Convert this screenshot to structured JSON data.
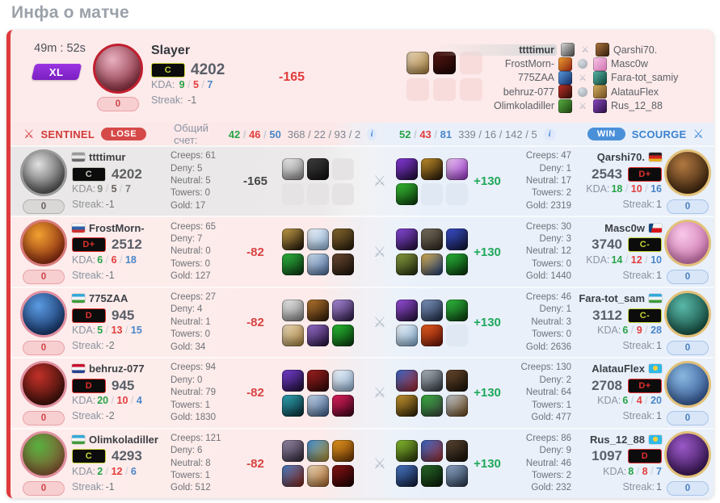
{
  "page": {
    "title": "Инфа о матче"
  },
  "labels": {
    "kda": "KDA:",
    "streak": "Streak:",
    "creeps": "Creeps:",
    "deny": "Deny:",
    "neutral": "Neutral:",
    "towers": "Towers:",
    "gold": "Gold:",
    "score": "Общий счет:"
  },
  "header": {
    "duration": "49m : 52s",
    "mode": "XL",
    "featured": {
      "name": "Slayer",
      "tier": {
        "label": "C",
        "color": "#c6d435"
      },
      "rating": "4202",
      "k": "9",
      "d": "5",
      "a": "7",
      "streak": "-1",
      "delta": "-165",
      "delta_color": "#e03c3c",
      "pill": "0",
      "avatar": {
        "ring": "#c01f2f",
        "colors": [
          "#e8b0c0",
          "#7a1c2c"
        ]
      }
    },
    "items": [
      [
        "#ead9bc",
        "#a97f3c"
      ],
      [
        "#541713",
        "#1c0605"
      ],
      null,
      null,
      null,
      null
    ],
    "matchups": [
      {
        "left": "ttttimur",
        "right": "Qarshi70.",
        "vs": "swords",
        "left_hl": true,
        "left_hero": [
          "#dcdcdc",
          "#3a3a3a"
        ],
        "right_hero": [
          "#b07840",
          "#2e1a08"
        ]
      },
      {
        "left": "FrostMorn-",
        "right": "Masc0w",
        "vs": "orb",
        "left_hero": [
          "#f0a030",
          "#8a1e10"
        ],
        "right_hero": [
          "#f8c8e8",
          "#d070b0"
        ]
      },
      {
        "left": "775ZAA",
        "right": "Fara-tot_samiy",
        "vs": "swords",
        "left_hero": [
          "#5a9ae0",
          "#102a60"
        ],
        "right_hero": [
          "#58b8a8",
          "#0e4034"
        ]
      },
      {
        "left": "behruz-077",
        "right": "AlatauFlex",
        "vs": "orb",
        "left_hero": [
          "#c03028",
          "#2a0c06"
        ],
        "right_hero": [
          "#d8b060",
          "#6a4820"
        ]
      },
      {
        "left": "Olimkoladiller",
        "right": "Rus_12_88",
        "vs": "swords",
        "left_hero": [
          "#58b040",
          "#1e4010"
        ],
        "right_hero": [
          "#8a48c0",
          "#2a0e40"
        ]
      }
    ]
  },
  "teams": {
    "left": {
      "name": "SENTINEL",
      "result": "LOSE",
      "k": "42",
      "d": "46",
      "a": "50",
      "extra": "368 / 22 / 93 / 2"
    },
    "right": {
      "name": "SCOURGE",
      "result": "WIN",
      "k": "52",
      "d": "43",
      "a": "81",
      "extra": "339 / 16 / 142 / 5"
    }
  },
  "rows": [
    {
      "theme": "gray",
      "left": {
        "name": "ttttimur",
        "flag": "mono",
        "tier": {
          "label": "C",
          "color": "#c6d435"
        },
        "rating": "4202",
        "k": "9",
        "d": "5",
        "a": "7",
        "streak": "-1",
        "pill": "0",
        "creeps": "61",
        "deny": "5",
        "neutral": "5",
        "towers": "0",
        "gold": "17",
        "delta": "-165",
        "delta_color": "#42464c",
        "avatar": {
          "ring": "#9a9a9a",
          "colors": [
            "#e0e0e0",
            "#3a3a3a"
          ]
        },
        "items": [
          [
            "#f0f0f0",
            "#8a8a8a"
          ],
          [
            "#404040",
            "#0e0e0e"
          ],
          null,
          null,
          null,
          null
        ]
      },
      "right": {
        "name": "Qarshi70.",
        "flag": "de",
        "tier": {
          "label": "D+",
          "color": "#e23030"
        },
        "rating": "2543",
        "k": "18",
        "d": "10",
        "a": "16",
        "streak": "1",
        "pill": "0",
        "creeps": "47",
        "deny": "1",
        "neutral": "17",
        "towers": "2",
        "gold": "2319",
        "delta": "+130",
        "delta_color": "#1fa85a",
        "avatar": {
          "ring": "#e2c078",
          "colors": [
            "#b07840",
            "#2e1a08"
          ]
        },
        "items": [
          [
            "#8a3be0",
            "#1c0d34"
          ],
          [
            "#c8922a",
            "#201408"
          ],
          [
            "#eac8f0",
            "#9a34cc"
          ],
          [
            "#38c034",
            "#0c3a0c"
          ],
          null,
          null
        ]
      }
    },
    {
      "theme": "pink",
      "left": {
        "name": "FrostMorn-",
        "flag": "ru",
        "tier": {
          "label": "D+",
          "color": "#e23030"
        },
        "rating": "2512",
        "k": "6",
        "d": "6",
        "a": "18",
        "streak": "-1",
        "pill": "0",
        "creeps": "65",
        "deny": "7",
        "neutral": "0",
        "towers": "0",
        "gold": "127",
        "delta": "-82",
        "delta_color": "#d94343",
        "avatar": {
          "ring": "#d87a7a",
          "colors": [
            "#f0a030",
            "#7a1a0c"
          ]
        },
        "items": [
          [
            "#caa24a",
            "#181006"
          ],
          [
            "#eef2f8",
            "#8fb4d8"
          ],
          [
            "#8a6a30",
            "#241a0c"
          ],
          [
            "#30b840",
            "#0a3410"
          ],
          [
            "#cfe0f0",
            "#4a6a9a"
          ],
          [
            "#6a4a32",
            "#1c120a"
          ]
        ]
      },
      "right": {
        "name": "Masc0w",
        "flag": "cz",
        "tier": {
          "label": "C-",
          "color": "#c6d435"
        },
        "rating": "3740",
        "k": "14",
        "d": "12",
        "a": "10",
        "streak": "1",
        "pill": "0",
        "creeps": "30",
        "deny": "3",
        "neutral": "12",
        "towers": "0",
        "gold": "1440",
        "delta": "+130",
        "delta_color": "#1fa85a",
        "avatar": {
          "ring": "#e2c078",
          "colors": [
            "#f8c8e8",
            "#c86aa8"
          ]
        },
        "items": [
          [
            "#8a4ae0",
            "#221034"
          ],
          [
            "#7a7060",
            "#2a241c"
          ],
          [
            "#3a50d0",
            "#10142e"
          ],
          [
            "#8aa040",
            "#222a10"
          ],
          [
            "#d8b050",
            "#1e3c78"
          ],
          [
            "#28b838",
            "#0a300e"
          ]
        ]
      }
    },
    {
      "theme": "pink",
      "left": {
        "name": "775ZAA",
        "flag": "uz",
        "tier": {
          "label": "D",
          "color": "#e23030"
        },
        "rating": "945",
        "k": "5",
        "d": "13",
        "a": "15",
        "streak": "-2",
        "pill": "0",
        "creeps": "27",
        "deny": "4",
        "neutral": "1",
        "towers": "0",
        "gold": "34",
        "delta": "-82",
        "delta_color": "#d94343",
        "avatar": {
          "ring": "#e090a0",
          "colors": [
            "#5a9ae0",
            "#0e2858"
          ]
        },
        "items": [
          [
            "#ececec",
            "#848484"
          ],
          [
            "#b87830",
            "#2c1a08"
          ],
          [
            "#b090e0",
            "#281640"
          ],
          [
            "#ead9bc",
            "#a8823c"
          ],
          [
            "#9a70d0",
            "#221036"
          ],
          [
            "#28c034",
            "#0a380c"
          ]
        ]
      },
      "right": {
        "name": "Fara-tot_sam",
        "flag": "uz",
        "tier": {
          "label": "C-",
          "color": "#c6d435"
        },
        "rating": "3112",
        "k": "6",
        "d": "9",
        "a": "28",
        "streak": "1",
        "pill": "0",
        "creeps": "46",
        "deny": "1",
        "neutral": "3",
        "towers": "0",
        "gold": "2636",
        "delta": "+130",
        "delta_color": "#1fa85a",
        "avatar": {
          "ring": "#e2c078",
          "colors": [
            "#58b8a8",
            "#0e4034"
          ]
        },
        "items": [
          [
            "#9a50e0",
            "#221034"
          ],
          [
            "#8098c0",
            "#1e2a44"
          ],
          [
            "#30c040",
            "#0c380e"
          ],
          [
            "#f0f4f8",
            "#80aad0"
          ],
          [
            "#e86020",
            "#6a1206"
          ],
          null
        ]
      }
    },
    {
      "theme": "pink",
      "left": {
        "name": "behruz-077",
        "flag": "nl",
        "tier": {
          "label": "D",
          "color": "#e23030"
        },
        "rating": "945",
        "k": "20",
        "d": "10",
        "a": "4",
        "streak": "-2",
        "pill": "0",
        "creeps": "94",
        "deny": "0",
        "neutral": "79",
        "towers": "1",
        "gold": "1830",
        "delta": "-82",
        "delta_color": "#d94343",
        "avatar": {
          "ring": "#e090a0",
          "colors": [
            "#c03028",
            "#2a0c06"
          ]
        },
        "items": [
          [
            "#7a40d8",
            "#1a0d2e"
          ],
          [
            "#a02020",
            "#2e0808"
          ],
          [
            "#f0f4fa",
            "#90b0d0"
          ],
          [
            "#30a8b8",
            "#0a2c34"
          ],
          [
            "#c8d8ea",
            "#3c5c88"
          ],
          [
            "#e82060",
            "#3c0418"
          ]
        ]
      },
      "right": {
        "name": "AlatauFlex",
        "flag": "kz",
        "tier": {
          "label": "D+",
          "color": "#e23030"
        },
        "rating": "2708",
        "k": "6",
        "d": "4",
        "a": "20",
        "streak": "1",
        "pill": "0",
        "creeps": "130",
        "deny": "2",
        "neutral": "64",
        "towers": "1",
        "gold": "477",
        "delta": "+130",
        "delta_color": "#1fa85a",
        "avatar": {
          "ring": "#e2c078",
          "colors": [
            "#88b8e0",
            "#2a4a88"
          ]
        },
        "items": [
          [
            "#3868c8",
            "#a82828"
          ],
          [
            "#b0b8c0",
            "#2e363e"
          ],
          [
            "#6a4a30",
            "#181006"
          ],
          [
            "#c89830",
            "#2c2008"
          ],
          [
            "#38b040",
            "#3c4440"
          ],
          [
            "#c0c8d0",
            "#6a4416"
          ]
        ]
      }
    },
    {
      "theme": "pink",
      "left": {
        "name": "Olimkoladiller",
        "flag": "uz",
        "tier": {
          "label": "C",
          "color": "#c6d435"
        },
        "rating": "4293",
        "k": "2",
        "d": "12",
        "a": "6",
        "streak": "-1",
        "pill": "0",
        "creeps": "121",
        "deny": "6",
        "neutral": "8",
        "towers": "1",
        "gold": "512",
        "delta": "-82",
        "delta_color": "#d94343",
        "avatar": {
          "ring": "#e090a0",
          "colors": [
            "#58b040",
            "#8a4830"
          ]
        },
        "items": [
          [
            "#9a8aa8",
            "#2c2636"
          ],
          [
            "#4090d8",
            "#b8922c"
          ],
          [
            "#e89a20",
            "#6a3406"
          ],
          [
            "#4a80c8",
            "#882414"
          ],
          [
            "#ead9bc",
            "#a86424"
          ],
          [
            "#8a1414",
            "#1c0202"
          ]
        ]
      },
      "right": {
        "name": "Rus_12_88",
        "flag": "kz",
        "tier": {
          "label": "D",
          "color": "#e23030"
        },
        "rating": "1097",
        "k": "8",
        "d": "8",
        "a": "7",
        "streak": "1",
        "pill": "0",
        "creeps": "86",
        "deny": "9",
        "neutral": "46",
        "towers": "2",
        "gold": "232",
        "delta": "+130",
        "delta_color": "#1fa85a",
        "avatar": {
          "ring": "#e2c078",
          "colors": [
            "#9a58c8",
            "#2c0e44"
          ]
        },
        "items": [
          [
            "#88c030",
            "#26320a"
          ],
          [
            "#3868c8",
            "#a03030"
          ],
          [
            "#5a4634",
            "#120c06"
          ],
          [
            "#4a78c8",
            "#0e1a34"
          ],
          [
            "#2a6a2a",
            "#081a08"
          ],
          [
            "#90a8c8",
            "#26364c"
          ]
        ]
      }
    }
  ]
}
